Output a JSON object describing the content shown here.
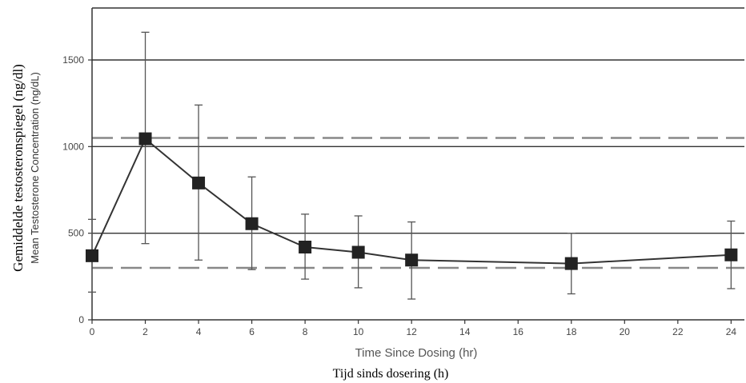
{
  "chart_data": {
    "type": "line",
    "xlabel": "Time Since Dosing (hr)",
    "xlabel_translation": "Tijd sinds dosering (h)",
    "ylabel": "Mean Testosterone Concentration (ng/dL)",
    "ylabel_translation": "Gemiddelde testosteronspiegel (ng/dl)",
    "xlim": [
      0,
      24.5
    ],
    "ylim": [
      0,
      1800
    ],
    "x_ticks": [
      "0",
      "2",
      "4",
      "6",
      "8",
      "10",
      "12",
      "14",
      "16",
      "18",
      "20",
      "22",
      "24"
    ],
    "y_ticks": [
      "0",
      "500",
      "1000",
      "1500"
    ],
    "grid_lines_y": [
      500,
      1000,
      1500
    ],
    "reference_lines_dashed": [
      300,
      1050
    ],
    "series": [
      {
        "x": [
          0,
          2,
          4,
          6,
          8,
          10,
          12,
          18,
          24
        ],
        "y": [
          370,
          1045,
          790,
          555,
          420,
          390,
          345,
          325,
          375
        ],
        "error_low": [
          160,
          440,
          345,
          290,
          235,
          185,
          120,
          150,
          180
        ],
        "error_high": [
          580,
          1660,
          1240,
          825,
          610,
          600,
          565,
          500,
          570
        ],
        "marker": "square",
        "color": "#222222"
      }
    ],
    "colors": {
      "line": "#333333",
      "marker": "#222222",
      "dashed": "#888888",
      "grid": "#333333"
    }
  }
}
